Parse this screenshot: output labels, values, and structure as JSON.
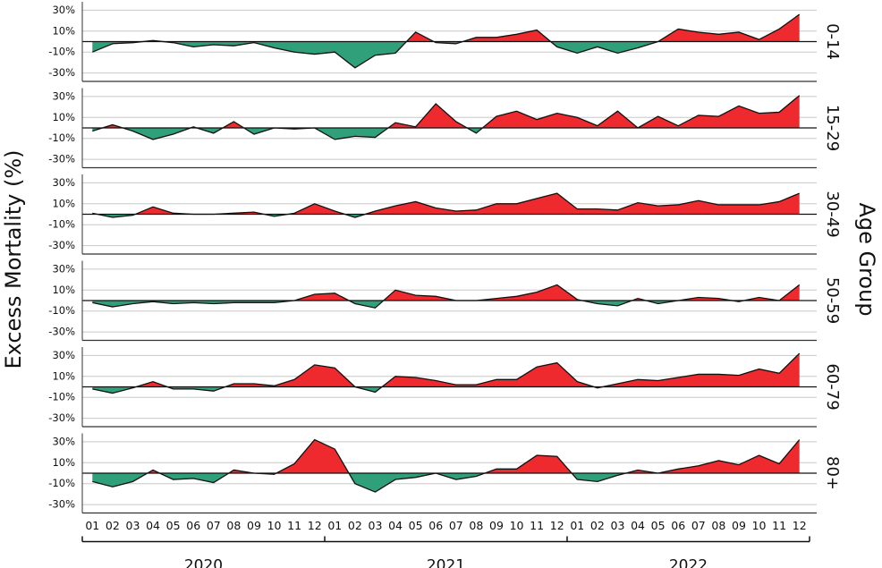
{
  "chart_data": {
    "type": "area",
    "y_label": "Excess Mortality (%)",
    "facet_label": "Age Group",
    "categories": [
      "01",
      "02",
      "03",
      "04",
      "05",
      "06",
      "07",
      "08",
      "09",
      "10",
      "11",
      "12",
      "01",
      "02",
      "03",
      "04",
      "05",
      "06",
      "07",
      "08",
      "09",
      "10",
      "11",
      "12",
      "01",
      "02",
      "03",
      "04",
      "05",
      "06",
      "07",
      "08",
      "09",
      "10",
      "11",
      "12"
    ],
    "years": [
      "2020",
      "2021",
      "2022"
    ],
    "colors": {
      "above": "#ee2a2e",
      "below": "#2fa07a"
    },
    "ylim": [
      -38,
      38
    ],
    "yticks": [
      {
        "value": -30,
        "label": "-30%"
      },
      {
        "value": -10,
        "label": "-10%"
      },
      {
        "value": 10,
        "label": "10%"
      },
      {
        "value": 30,
        "label": "30%"
      }
    ],
    "grid": true,
    "series": [
      {
        "name": "0-14",
        "values": [
          -10,
          -2,
          -1,
          1,
          -1,
          -5,
          -3,
          -4,
          -1,
          -6,
          -10,
          -12,
          -10,
          -25,
          -13,
          -11,
          9,
          -1,
          -2,
          4,
          4,
          7,
          11,
          -5,
          -11,
          -5,
          -11,
          -6,
          0,
          12,
          9,
          7,
          9,
          2,
          12,
          26
        ]
      },
      {
        "name": "15-29",
        "values": [
          -3,
          3,
          -3,
          -11,
          -6,
          1,
          -5,
          6,
          -6,
          0,
          -1,
          0,
          -11,
          -8,
          -9,
          5,
          1,
          23,
          6,
          -5,
          11,
          16,
          8,
          14,
          10,
          2,
          16,
          0,
          11,
          2,
          12,
          11,
          21,
          14,
          15,
          31
        ]
      },
      {
        "name": "30-49",
        "values": [
          1,
          -3,
          -1,
          7,
          1,
          0,
          0,
          1,
          2,
          -2,
          1,
          10,
          3,
          -3,
          3,
          8,
          12,
          6,
          3,
          4,
          10,
          10,
          15,
          20,
          5,
          5,
          4,
          11,
          8,
          9,
          13,
          9,
          9,
          9,
          12,
          20
        ]
      },
      {
        "name": "50-59",
        "values": [
          -2,
          -6,
          -3,
          -1,
          -3,
          -2,
          -3,
          -2,
          -2,
          -2,
          0,
          6,
          7,
          -3,
          -7,
          10,
          5,
          4,
          0,
          0,
          2,
          4,
          8,
          15,
          1,
          -3,
          -5,
          2,
          -3,
          0,
          3,
          2,
          -1,
          3,
          0,
          15
        ]
      },
      {
        "name": "60-79",
        "values": [
          -2,
          -6,
          -1,
          5,
          -2,
          -2,
          -4,
          3,
          3,
          1,
          7,
          21,
          18,
          0,
          -5,
          10,
          9,
          6,
          2,
          2,
          7,
          7,
          19,
          23,
          5,
          -1,
          3,
          7,
          6,
          9,
          12,
          12,
          11,
          17,
          13,
          32
        ]
      },
      {
        "name": "80+",
        "values": [
          -8,
          -13,
          -8,
          3,
          -6,
          -5,
          -9,
          3,
          0,
          -1,
          9,
          32,
          23,
          -10,
          -18,
          -6,
          -4,
          0,
          -6,
          -3,
          4,
          4,
          17,
          16,
          -6,
          -8,
          -2,
          3,
          0,
          4,
          7,
          12,
          8,
          17,
          9,
          32
        ]
      }
    ]
  }
}
